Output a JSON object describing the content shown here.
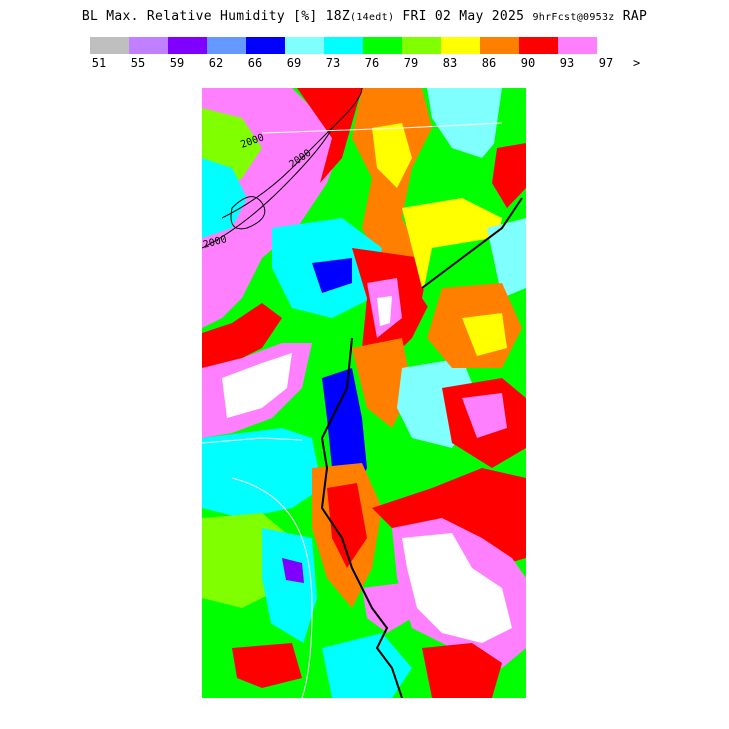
{
  "title": {
    "main": "BL Max. Relative Humidity [%] 18Z",
    "local": "(14edt)",
    "date": "FRI 02 May 2025",
    "forecast": "9hrFcst@0953z",
    "model": "RAP"
  },
  "legend": {
    "colors": [
      "#bfbfbf",
      "#c080ff",
      "#8000ff",
      "#6699ff",
      "#0000ff",
      "#80ffff",
      "#00ffff",
      "#00ff00",
      "#80ff00",
      "#ffff00",
      "#ff8000",
      "#ff0000",
      "#ff80ff"
    ],
    "labels": [
      "51",
      "55",
      "59",
      "62",
      "66",
      "69",
      "73",
      "76",
      "79",
      "83",
      "86",
      "90",
      "93",
      "97"
    ],
    "overflow": ">"
  },
  "map": {
    "background": "#00ff00",
    "contour_labels": [
      "2000",
      "2000",
      "2000"
    ]
  }
}
